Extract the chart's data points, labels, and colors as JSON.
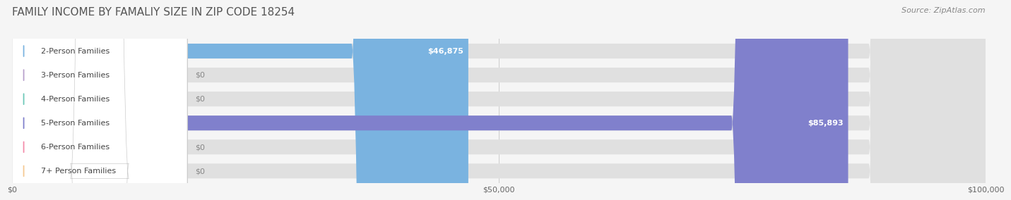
{
  "title": "FAMILY INCOME BY FAMALIY SIZE IN ZIP CODE 18254",
  "source": "Source: ZipAtlas.com",
  "categories": [
    "2-Person Families",
    "3-Person Families",
    "4-Person Families",
    "5-Person Families",
    "6-Person Families",
    "7+ Person Families"
  ],
  "values": [
    46875,
    0,
    0,
    85893,
    0,
    0
  ],
  "bar_colors": [
    "#7ab3e0",
    "#b8a0cc",
    "#6dc8b8",
    "#8080cc",
    "#f48caa",
    "#f5c992"
  ],
  "label_colors": [
    "#7ab3e0",
    "#b8a0cc",
    "#6dc8b8",
    "#8080cc",
    "#f48caa",
    "#f5c992"
  ],
  "background_color": "#f5f5f5",
  "bar_bg_color": "#e8e8e8",
  "xlim": [
    0,
    100000
  ],
  "xticks": [
    0,
    50000,
    100000
  ],
  "xtick_labels": [
    "$0",
    "$50,000",
    "$100,000"
  ],
  "title_fontsize": 11,
  "source_fontsize": 8,
  "label_fontsize": 8,
  "value_fontsize": 8
}
